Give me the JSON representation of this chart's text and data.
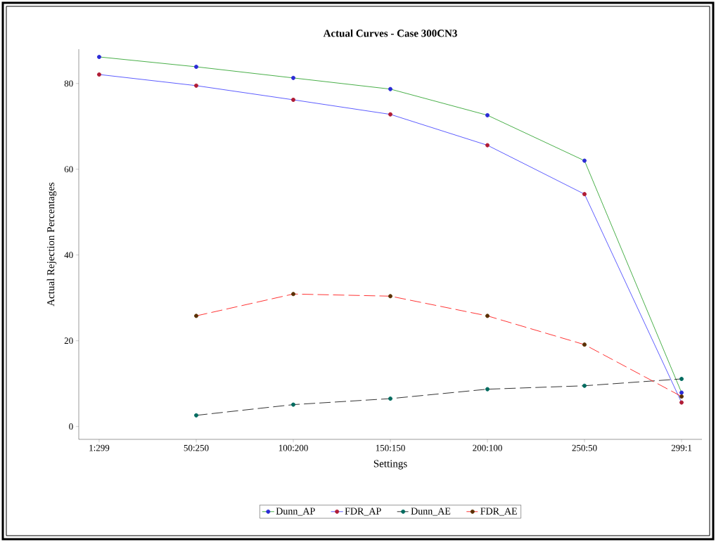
{
  "chart_data": {
    "type": "line",
    "title": "Actual Curves - Case 300CN3",
    "xlabel": "Settings",
    "ylabel": "Actual Rejection Percentages",
    "categories": [
      "1:299",
      "50:250",
      "100:200",
      "150:150",
      "200:100",
      "250:50",
      "299:1"
    ],
    "ylim": [
      -3,
      88
    ],
    "yticks": [
      0,
      20,
      40,
      60,
      80
    ],
    "grid": false,
    "legend": "bottom",
    "marker": "circle",
    "series": [
      {
        "name": "Dunn_AP",
        "color": "#1a9a1a",
        "colors": [
          "#2b2bd6",
          "#2b2bd6",
          "#2b2bd6",
          "#2b2bd6",
          "#2b2bd6",
          "#2b2bd6",
          "#2b2bd6"
        ],
        "line_style": "solid",
        "values": [
          86.2,
          83.9,
          81.3,
          78.7,
          72.6,
          62.0,
          7.9
        ]
      },
      {
        "name": "FDR_AP",
        "color": "#3333ff",
        "colors": [
          "#b01c35",
          "#b01c35",
          "#b01c35",
          "#b01c35",
          "#b01c35",
          "#b01c35",
          "#b01c35"
        ],
        "line_style": "solid",
        "values": [
          82.1,
          79.5,
          76.2,
          72.8,
          65.6,
          54.2,
          5.6
        ]
      },
      {
        "name": "Dunn_AE",
        "color": "#000000",
        "colors": [
          null,
          "#006b5f",
          "#006b5f",
          "#006b5f",
          "#006b5f",
          "#006b5f",
          "#006b5f"
        ],
        "line_style": "dashed",
        "values": [
          null,
          2.6,
          5.1,
          6.5,
          8.7,
          9.5,
          11.1
        ]
      },
      {
        "name": "FDR_AE",
        "color": "#ff0000",
        "colors": [
          null,
          "#5a3000",
          "#5a3000",
          "#5a3000",
          "#5a3000",
          "#5a3000",
          "#5a3000"
        ],
        "line_style": "dashed",
        "values": [
          null,
          25.8,
          30.9,
          30.4,
          25.8,
          19.1,
          7.0
        ]
      }
    ]
  }
}
